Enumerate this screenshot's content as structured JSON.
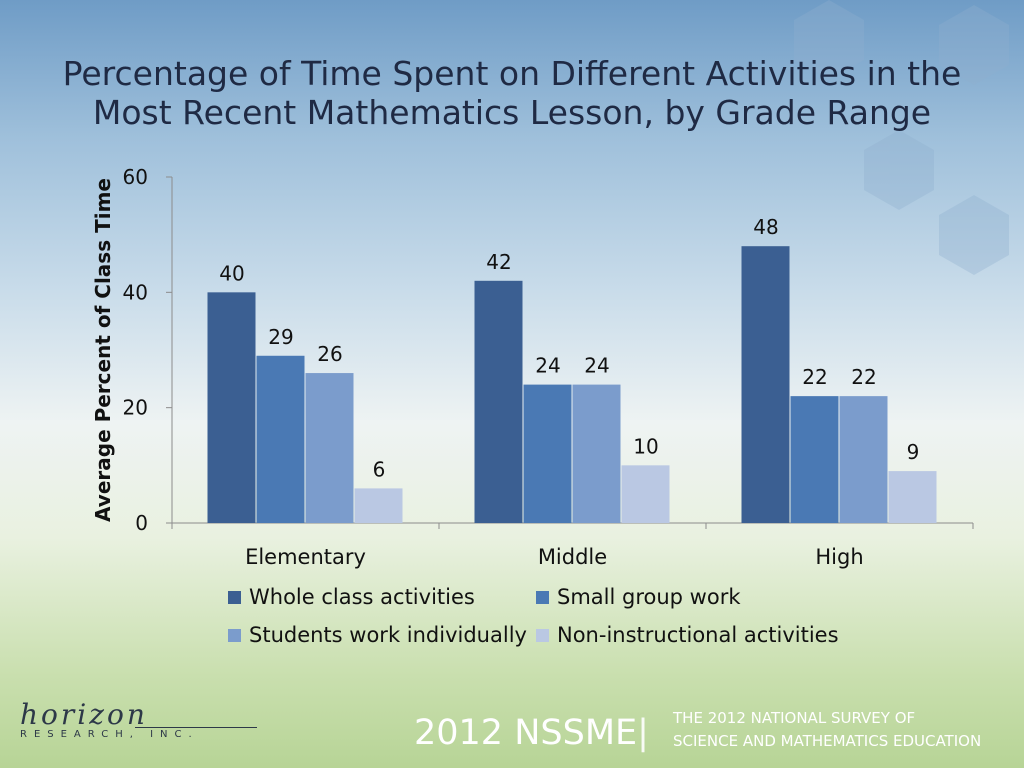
{
  "chart_data": {
    "type": "bar",
    "title": "Percentage of Time Spent on Different Activities in the Most Recent Mathematics Lesson, by Grade Range",
    "title_lines": [
      "Percentage of Time Spent on Different Activities in the",
      "Most Recent Mathematics Lesson, by Grade Range"
    ],
    "xlabel": "",
    "ylabel": "Average Percent of Class Time",
    "ylim": [
      0,
      60
    ],
    "yticks": [
      0,
      20,
      40,
      60
    ],
    "grid": false,
    "legend_position": "bottom",
    "categories": [
      "Elementary",
      "Middle",
      "High"
    ],
    "series": [
      {
        "name": "Whole class activities",
        "color": "#3b5f92",
        "values": [
          40,
          42,
          48
        ]
      },
      {
        "name": "Small group work",
        "color": "#4a79b4",
        "values": [
          29,
          24,
          22
        ]
      },
      {
        "name": "Students work individually",
        "color": "#7b9ccc",
        "values": [
          26,
          24,
          22
        ]
      },
      {
        "name": "Non-instructional activities",
        "color": "#bac8e3",
        "values": [
          6,
          10,
          9
        ]
      }
    ]
  },
  "footer": {
    "logo_text": "horizon",
    "logo_sub": "RESEARCH, INC.",
    "brand": "2012 NSSME",
    "brand_separator": "|",
    "survey_line1": "THE 2012 NATIONAL SURVEY OF",
    "survey_line2": "SCIENCE AND MATHEMATICS EDUCATION"
  },
  "colors": {
    "text": "#1f2a44",
    "axis": "#8c8c8c"
  }
}
